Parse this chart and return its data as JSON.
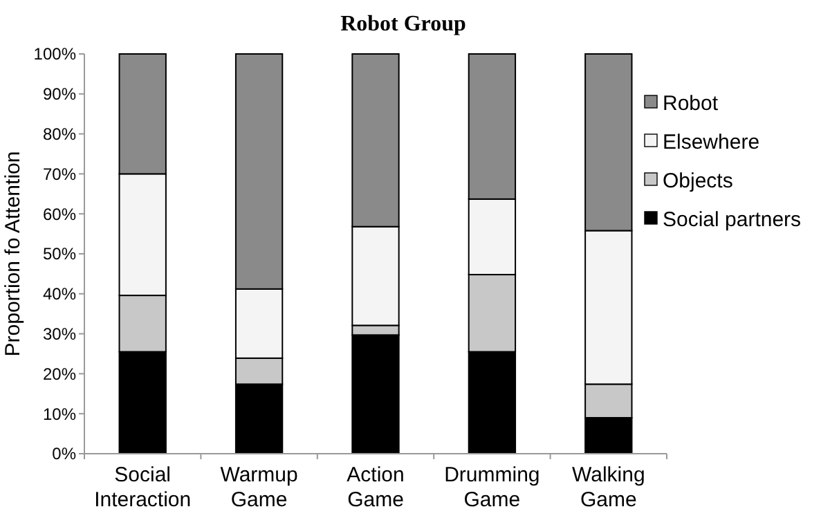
{
  "chart_data": {
    "type": "bar",
    "title": "Robot Group",
    "ylabel": "Proportion fo Attention",
    "stacked": true,
    "categories": [
      "Social Interaction",
      "Warmup Game",
      "Action Game",
      "Drumming Game",
      "Walking Game"
    ],
    "series": [
      {
        "name": "Social partners",
        "color": "#000000",
        "values": [
          25.5,
          17.4,
          29.7,
          25.5,
          9.0
        ]
      },
      {
        "name": "Objects",
        "color": "#c8c8c8",
        "values": [
          14.1,
          6.5,
          2.4,
          19.3,
          8.4
        ]
      },
      {
        "name": "Elsewhere",
        "color": "#f4f4f4",
        "values": [
          30.4,
          17.3,
          24.7,
          18.9,
          38.4
        ]
      },
      {
        "name": "Robot",
        "color": "#8a8a8a",
        "values": [
          30.0,
          58.8,
          43.2,
          36.3,
          44.2
        ]
      }
    ],
    "ylim": [
      0,
      100
    ],
    "yticks": [
      {
        "value": 0,
        "label": "0%"
      },
      {
        "value": 10,
        "label": "10%"
      },
      {
        "value": 20,
        "label": "20%"
      },
      {
        "value": 30,
        "label": "30%"
      },
      {
        "value": 40,
        "label": "40%"
      },
      {
        "value": 50,
        "label": "50%"
      },
      {
        "value": 60,
        "label": "60%"
      },
      {
        "value": 70,
        "label": "70%"
      },
      {
        "value": 80,
        "label": "80%"
      },
      {
        "value": 90,
        "label": "90%"
      },
      {
        "value": 100,
        "label": "100%"
      }
    ],
    "grid": false,
    "legend": "right"
  }
}
